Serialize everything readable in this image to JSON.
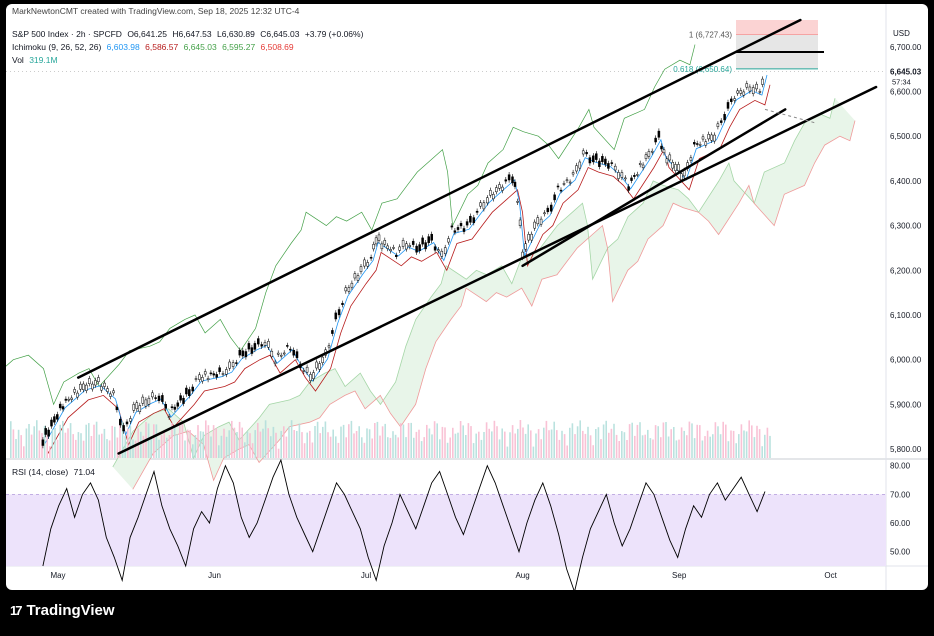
{
  "header": {
    "credit": "MarkNewtonCMT created with TradingView.com, Sep 18, 2025 12:32 UTC-4",
    "symbol": "S&P 500 Index · 2h · SPCFD",
    "o": "O6,641.25",
    "h": "H6,647.53",
    "l": "L6,630.89",
    "c": "C6,645.03",
    "chg": "+3.79 (+0.06%)",
    "ichimoku_label": "Ichimoku (9, 26, 52, 26)",
    "ichimoku_values": [
      "6,603.98",
      "6,586.57",
      "6,645.03",
      "6,595.27",
      "6,508.69"
    ],
    "vol_label": "Vol",
    "vol_value": "319.1M"
  },
  "rsi_panel": {
    "label": "RSI (14, close)",
    "value": "71.04"
  },
  "branding": {
    "logo_text": "TradingView",
    "logo_mark": "17"
  },
  "colors": {
    "tenkan": "#2196f3",
    "kijun": "#b71c1c",
    "chikou": "#43a047",
    "span_a": "#a5d6a7",
    "span_b": "#ef9a9a",
    "cloud_fill": "#e8f5e9",
    "rsi_line": "#000000",
    "rsi_band": "#ede3fb",
    "price_up": "#000000",
    "price_down": "#000000"
  },
  "chart_data": [
    {
      "type": "candlestick",
      "title": "S&P 500 Index · 2h · SPCFD",
      "y_axis": {
        "label": "USD",
        "range": [
          5780,
          6760
        ],
        "ticks": [
          5800,
          5900,
          6000,
          6100,
          6200,
          6300,
          6400,
          6500,
          6600,
          6700
        ]
      },
      "x_axis": {
        "ticks": [
          "May",
          "Jun",
          "Jul",
          "Aug",
          "Sep",
          "Oct"
        ]
      },
      "current_price": {
        "value": 6645.03,
        "label": "6,645.03",
        "countdown": "57:34"
      },
      "fib_levels": [
        {
          "ratio": "1",
          "value": 6727.43,
          "label": "1 (6,727.43)"
        },
        {
          "ratio": "0.618",
          "value": 6650.64,
          "label": "0.618 (6,650.64)"
        }
      ],
      "close_path": [
        [
          "Apr 28",
          5820
        ],
        [
          "May 2",
          5900
        ],
        [
          "May 6",
          5940
        ],
        [
          "May 9",
          5950
        ],
        [
          "May 12",
          5920
        ],
        [
          "May 14",
          5840
        ],
        [
          "May 16",
          5890
        ],
        [
          "May 19",
          5910
        ],
        [
          "May 21",
          5920
        ],
        [
          "May 23",
          5880
        ],
        [
          "May 27",
          5930
        ],
        [
          "May 29",
          5960
        ],
        [
          "Jun 2",
          5970
        ],
        [
          "Jun 4",
          5980
        ],
        [
          "Jun 6",
          6010
        ],
        [
          "Jun 9",
          6030
        ],
        [
          "Jun 11",
          6040
        ],
        [
          "Jun 13",
          6000
        ],
        [
          "Jun 16",
          6030
        ],
        [
          "Jun 18",
          5990
        ],
        [
          "Jun 20",
          5960
        ],
        [
          "Jun 23",
          6010
        ],
        [
          "Jun 25",
          6090
        ],
        [
          "Jun 27",
          6150
        ],
        [
          "Jun 30",
          6200
        ],
        [
          "Jul 2",
          6230
        ],
        [
          "Jul 3",
          6270
        ],
        [
          "Jul 7",
          6240
        ],
        [
          "Jul 9",
          6260
        ],
        [
          "Jul 11",
          6250
        ],
        [
          "Jul 14",
          6270
        ],
        [
          "Jul 16",
          6230
        ],
        [
          "Jul 18",
          6290
        ],
        [
          "Jul 21",
          6300
        ],
        [
          "Jul 23",
          6330
        ],
        [
          "Jul 25",
          6360
        ],
        [
          "Jul 28",
          6390
        ],
        [
          "Jul 30",
          6410
        ],
        [
          "Jul 31",
          6360
        ],
        [
          "Aug 1",
          6240
        ],
        [
          "Aug 4",
          6310
        ],
        [
          "Aug 6",
          6330
        ],
        [
          "Aug 8",
          6380
        ],
        [
          "Aug 11",
          6410
        ],
        [
          "Aug 13",
          6460
        ],
        [
          "Aug 15",
          6450
        ],
        [
          "Aug 18",
          6440
        ],
        [
          "Aug 20",
          6420
        ],
        [
          "Aug 22",
          6390
        ],
        [
          "Aug 26",
          6460
        ],
        [
          "Aug 28",
          6500
        ],
        [
          "Aug 29",
          6460
        ],
        [
          "Sep 2",
          6410
        ],
        [
          "Sep 4",
          6480
        ],
        [
          "Sep 8",
          6500
        ],
        [
          "Sep 10",
          6550
        ],
        [
          "Sep 12",
          6590
        ],
        [
          "Sep 15",
          6610
        ],
        [
          "Sep 17",
          6600
        ],
        [
          "Sep 18",
          6645
        ]
      ],
      "channels": [
        {
          "name": "upper",
          "from": [
            "May 5",
            5960
          ],
          "to": [
            "Sep 25",
            6760
          ]
        },
        {
          "name": "lower",
          "from": [
            "May 13",
            5790
          ],
          "to": [
            "Oct 10",
            6610
          ]
        },
        {
          "name": "inner",
          "from": [
            "Aug 1",
            6210
          ],
          "to": [
            "Sep 22",
            6560
          ]
        }
      ]
    },
    {
      "type": "line",
      "title": "RSI (14, close)",
      "y_axis": {
        "range": [
          45,
          82
        ],
        "ticks": [
          50,
          60,
          70,
          80
        ]
      },
      "band": [
        30,
        70
      ],
      "series": [
        {
          "name": "RSI (14, close)",
          "last": 71.04,
          "values": [
            45,
            58,
            66,
            72,
            62,
            70,
            74,
            68,
            55,
            48,
            40,
            55,
            62,
            70,
            78,
            66,
            58,
            52,
            45,
            58,
            64,
            60,
            72,
            80,
            74,
            62,
            55,
            60,
            68,
            76,
            82,
            70,
            62,
            56,
            50,
            58,
            66,
            74,
            70,
            64,
            58,
            48,
            40,
            52,
            60,
            70,
            64,
            58,
            66,
            74,
            78,
            70,
            62,
            56,
            64,
            72,
            80,
            74,
            66,
            58,
            50,
            60,
            68,
            74,
            66,
            56,
            44,
            36,
            48,
            58,
            64,
            70,
            60,
            52,
            58,
            66,
            74,
            70,
            62,
            54,
            48,
            58,
            66,
            62,
            70,
            74,
            68,
            72,
            76,
            70,
            64,
            71
          ]
        }
      ]
    }
  ]
}
